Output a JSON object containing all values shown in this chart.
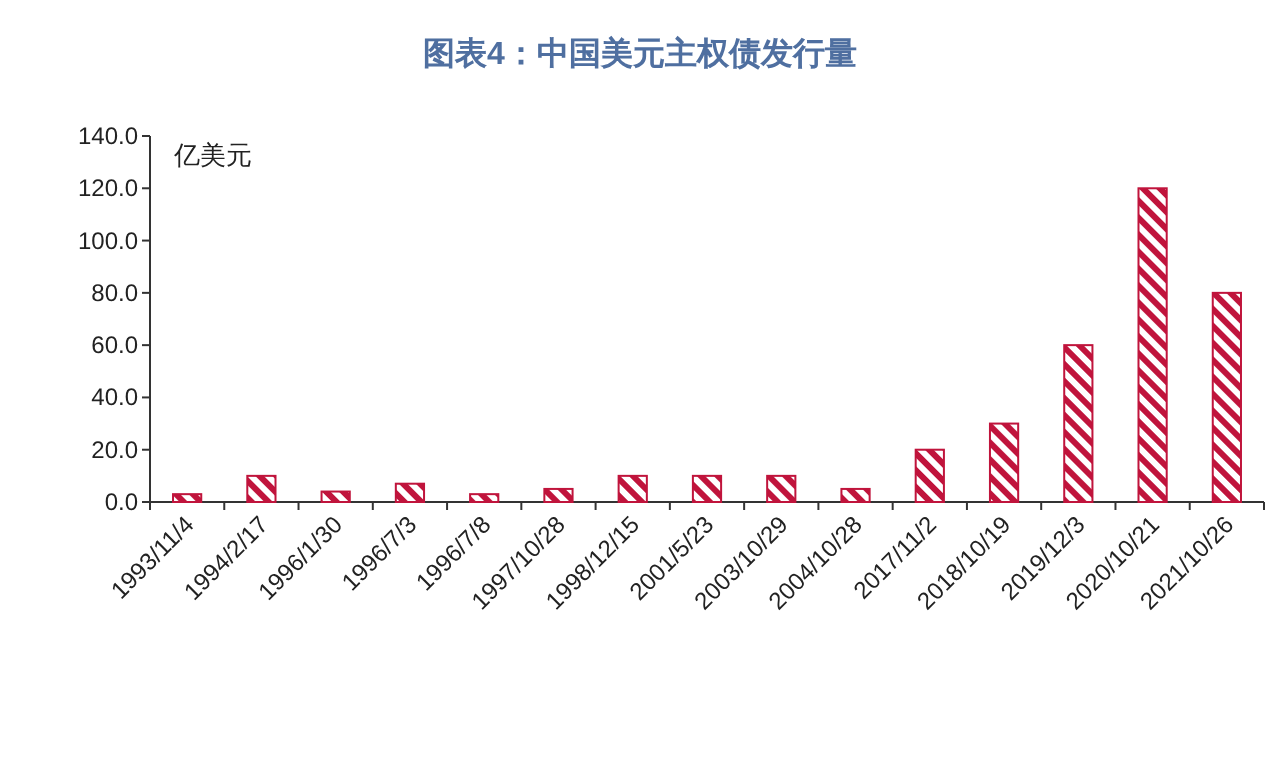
{
  "chart_data": {
    "type": "bar",
    "title": "图表4：中国美元主权债发行量",
    "ylabel": "亿美元",
    "categories": [
      "1993/11/4",
      "1994/2/17",
      "1996/1/30",
      "1996/7/3",
      "1996/7/8",
      "1997/10/28",
      "1998/12/15",
      "2001/5/23",
      "2003/10/29",
      "2004/10/28",
      "2017/11/2",
      "2018/10/19",
      "2019/12/3",
      "2020/10/21",
      "2021/10/26"
    ],
    "values": [
      3,
      10,
      4,
      7,
      3,
      5,
      10,
      10,
      10,
      5,
      20,
      30,
      60,
      120,
      80
    ],
    "color": "#c0143c",
    "ylim": [
      0,
      140
    ],
    "yticks": [
      {
        "value": 0,
        "label": "0.0"
      },
      {
        "value": 20,
        "label": "20.0"
      },
      {
        "value": 40,
        "label": "40.0"
      },
      {
        "value": 60,
        "label": "60.0"
      },
      {
        "value": 80,
        "label": "80.0"
      },
      {
        "value": 100,
        "label": "100.0"
      },
      {
        "value": 120,
        "label": "120.0"
      },
      {
        "value": 140,
        "label": "140.0"
      }
    ],
    "grid": false
  }
}
